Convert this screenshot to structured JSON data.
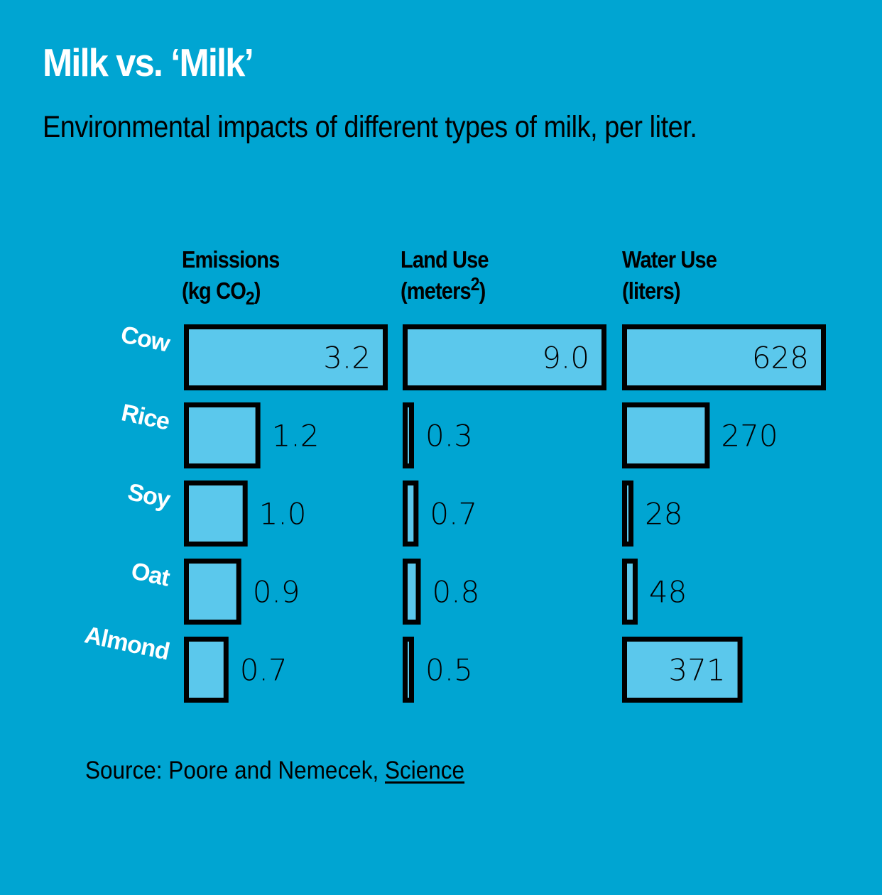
{
  "title": "Milk vs. ‘Milk’",
  "subtitle": "Environmental impacts of different types of milk, per liter.",
  "colors": {
    "background": "#00A5D2",
    "bar_fill": "#5BC8EC",
    "bar_stroke": "#000000",
    "label_text": "#FFFFFF"
  },
  "chart_data": {
    "type": "bar",
    "title": "Milk vs. ‘Milk’",
    "subtitle": "Environmental impacts of different types of milk, per liter.",
    "categories": [
      "Cow",
      "Rice",
      "Soy",
      "Oat",
      "Almond"
    ],
    "series": [
      {
        "name": "Emissions",
        "unit_prefix": "(kg CO",
        "unit_sub": "2",
        "unit_suffix": ")",
        "values": [
          3.2,
          1.2,
          1.0,
          0.9,
          0.7
        ],
        "labels": [
          "3.2",
          "1.2",
          "1.0",
          "0.9",
          "0.7"
        ],
        "max": 3.2
      },
      {
        "name": "Land Use",
        "unit_prefix": "(meters",
        "unit_sup": "2",
        "unit_suffix": ")",
        "values": [
          9.0,
          0.3,
          0.7,
          0.8,
          0.5
        ],
        "labels": [
          "9.0",
          "0.3",
          "0.7",
          "0.8",
          "0.5"
        ],
        "max": 9.0
      },
      {
        "name": "Water Use",
        "unit_prefix": "(liters)",
        "values": [
          628,
          270,
          28,
          48,
          371
        ],
        "labels": [
          "628",
          "270",
          "28",
          "48",
          "371"
        ],
        "max": 628
      }
    ],
    "label_inside": [
      [
        true,
        false,
        false,
        false,
        false
      ],
      [
        true,
        false,
        false,
        false,
        false
      ],
      [
        true,
        false,
        false,
        false,
        true
      ]
    ]
  },
  "source": {
    "prefix": "Source: Poore and Nemecek, ",
    "link": "Science"
  }
}
